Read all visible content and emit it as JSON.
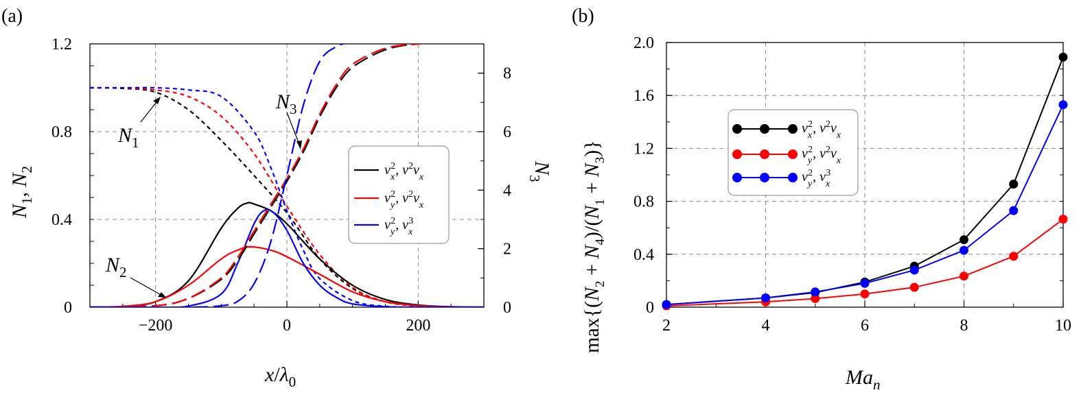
{
  "chart_data": [
    {
      "panel": "(a)",
      "type": "line",
      "xlabel": "x/λ0",
      "ylabel": "N1, N2",
      "ylabel_right": "N3",
      "xlim": [
        -300,
        300
      ],
      "ylim": [
        0,
        1.2
      ],
      "ylim_right": [
        0,
        9
      ],
      "xticks": [
        "−200",
        "0",
        "200"
      ],
      "yticks": [
        "0",
        "0.4",
        "0.8",
        "1.2"
      ],
      "yticks_right": [
        "0",
        "2",
        "4",
        "6",
        "8"
      ],
      "grid": true,
      "legend": {
        "position": "right",
        "entries": [
          {
            "label": "v_x², v²v_x",
            "color": "#000000"
          },
          {
            "label": "v_y², v²v_x",
            "color": "#ff0000"
          },
          {
            "label": "v_y², v_x³",
            "color": "#0000ff"
          }
        ]
      },
      "annotations": [
        {
          "text": "N1",
          "points_to": "N1 curves",
          "at_x": -190
        },
        {
          "text": "N2",
          "points_to": "N2 curves",
          "at_x": -180
        },
        {
          "text": "N3",
          "points_to": "N3 curves",
          "at_x": 25
        }
      ],
      "series": [
        {
          "color": "#000000",
          "quantity": "N1",
          "axis": "left",
          "style": "dotted",
          "x": [
            -300,
            -250,
            -200,
            -150,
            -100,
            -50,
            0,
            50,
            100,
            150,
            200,
            250,
            300
          ],
          "y": [
            1.0,
            0.997,
            0.98,
            0.9,
            0.76,
            0.6,
            0.43,
            0.22,
            0.085,
            0.025,
            0.005,
            0.001,
            0
          ]
        },
        {
          "color": "#ff0000",
          "quantity": "N1",
          "axis": "left",
          "style": "dotted",
          "x": [
            -300,
            -250,
            -200,
            -150,
            -100,
            -50,
            0,
            50,
            100,
            150,
            200,
            250,
            300
          ],
          "y": [
            1.0,
            0.999,
            0.99,
            0.96,
            0.87,
            0.7,
            0.46,
            0.24,
            0.09,
            0.025,
            0.006,
            0.001,
            0
          ]
        },
        {
          "color": "#0000ff",
          "quantity": "N1",
          "axis": "left",
          "style": "dotted",
          "x": [
            -300,
            -250,
            -200,
            -150,
            -100,
            -50,
            -25,
            0,
            25,
            50,
            100,
            150,
            200,
            300
          ],
          "y": [
            1.0,
            1.0,
            1.0,
            0.99,
            0.96,
            0.8,
            0.64,
            0.44,
            0.26,
            0.13,
            0.03,
            0.004,
            0.0005,
            0
          ]
        },
        {
          "color": "#000000",
          "quantity": "N2",
          "axis": "left",
          "style": "solid",
          "x": [
            -300,
            -250,
            -200,
            -150,
            -100,
            -75,
            -60,
            -50,
            -25,
            0,
            50,
            100,
            150,
            200,
            250,
            300
          ],
          "y": [
            0,
            0.003,
            0.025,
            0.12,
            0.36,
            0.45,
            0.475,
            0.47,
            0.44,
            0.38,
            0.22,
            0.1,
            0.035,
            0.01,
            0.002,
            0
          ]
        },
        {
          "color": "#ff0000",
          "quantity": "N2",
          "axis": "left",
          "style": "solid",
          "x": [
            -300,
            -250,
            -200,
            -150,
            -100,
            -75,
            -55,
            -25,
            0,
            50,
            100,
            150,
            200,
            250,
            300
          ],
          "y": [
            0,
            0.004,
            0.025,
            0.1,
            0.22,
            0.26,
            0.275,
            0.26,
            0.23,
            0.15,
            0.07,
            0.025,
            0.007,
            0.001,
            0
          ]
        },
        {
          "color": "#0000ff",
          "quantity": "N2",
          "axis": "left",
          "style": "solid",
          "x": [
            -300,
            -200,
            -150,
            -100,
            -75,
            -50,
            -35,
            -20,
            0,
            25,
            50,
            75,
            100,
            150,
            200,
            300
          ],
          "y": [
            0,
            0,
            0.005,
            0.06,
            0.2,
            0.38,
            0.44,
            0.43,
            0.35,
            0.2,
            0.1,
            0.045,
            0.015,
            0.002,
            0,
            0
          ]
        },
        {
          "color": "#000000",
          "quantity": "N3",
          "axis": "right",
          "style": "dashed",
          "x": [
            -300,
            -200,
            -150,
            -100,
            -75,
            -50,
            -25,
            0,
            25,
            50,
            75,
            100,
            150,
            200,
            250,
            300
          ],
          "y": [
            0,
            0.05,
            0.3,
            0.95,
            1.6,
            2.5,
            3.4,
            4.3,
            5.3,
            6.5,
            7.5,
            8.2,
            8.8,
            9.0,
            9.05,
            9.05
          ]
        },
        {
          "color": "#ff0000",
          "quantity": "N3",
          "axis": "right",
          "style": "dashed",
          "x": [
            -300,
            -200,
            -150,
            -100,
            -75,
            -50,
            -25,
            0,
            25,
            50,
            75,
            100,
            150,
            200,
            250,
            300
          ],
          "y": [
            0,
            0.05,
            0.3,
            1.0,
            1.7,
            2.6,
            3.5,
            4.4,
            5.4,
            6.6,
            7.6,
            8.3,
            8.85,
            9.0,
            9.05,
            9.05
          ]
        },
        {
          "color": "#0000ff",
          "quantity": "N3",
          "axis": "right",
          "style": "dashed",
          "x": [
            -300,
            -150,
            -100,
            -75,
            -50,
            -25,
            0,
            25,
            50,
            75,
            100,
            150,
            200,
            300
          ],
          "y": [
            0,
            0,
            0.05,
            0.2,
            0.8,
            2.2,
            4.5,
            6.9,
            8.4,
            8.9,
            9.05,
            9.1,
            9.1,
            9.1
          ]
        }
      ]
    },
    {
      "panel": "(b)",
      "type": "line",
      "xlabel": "Ma_n",
      "ylabel": "max{(N2 + N4)/(N1 + N3)}",
      "xlim": [
        2,
        10
      ],
      "ylim": [
        0,
        2.0
      ],
      "xticks": [
        "2",
        "4",
        "6",
        "8",
        "10"
      ],
      "yticks": [
        "0",
        "0.4",
        "0.8",
        "1.2",
        "1.6",
        "2.0"
      ],
      "grid": true,
      "legend": {
        "position": "upper-left",
        "entries": [
          {
            "label": "v_x², v²v_x",
            "color": "#000000"
          },
          {
            "label": "v_y², v²v_x",
            "color": "#ff0000"
          },
          {
            "label": "v_y², v_x³",
            "color": "#0000ff"
          }
        ]
      },
      "series": [
        {
          "color": "#000000",
          "marker": "circle",
          "x": [
            2,
            4,
            5,
            6,
            7,
            8,
            9,
            10
          ],
          "y": [
            0.02,
            0.07,
            0.11,
            0.19,
            0.31,
            0.51,
            0.93,
            1.89
          ]
        },
        {
          "color": "#ff0000",
          "marker": "circle",
          "x": [
            2,
            4,
            5,
            6,
            7,
            8,
            9,
            10
          ],
          "y": [
            0.01,
            0.04,
            0.065,
            0.1,
            0.15,
            0.235,
            0.385,
            0.665
          ]
        },
        {
          "color": "#0000ff",
          "marker": "circle",
          "x": [
            2,
            4,
            5,
            6,
            7,
            8,
            9,
            10
          ],
          "y": [
            0.02,
            0.07,
            0.115,
            0.18,
            0.28,
            0.43,
            0.73,
            1.53
          ]
        }
      ]
    }
  ]
}
